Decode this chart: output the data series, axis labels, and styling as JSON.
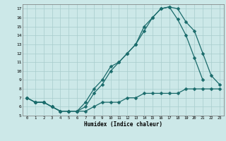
{
  "xlabel": "Humidex (Indice chaleur)",
  "bg_color": "#cce8e8",
  "line_color": "#1a6b6b",
  "grid_color": "#a8cccc",
  "xlim": [
    -0.5,
    23.5
  ],
  "ylim": [
    5,
    17.5
  ],
  "xticks": [
    0,
    1,
    2,
    3,
    4,
    5,
    6,
    7,
    8,
    9,
    10,
    11,
    12,
    13,
    14,
    15,
    16,
    17,
    18,
    19,
    20,
    21,
    22,
    23
  ],
  "yticks": [
    5,
    6,
    7,
    8,
    9,
    10,
    11,
    12,
    13,
    14,
    15,
    16,
    17
  ],
  "line1_x": [
    0,
    1,
    2,
    3,
    4,
    5,
    6,
    7,
    8,
    9,
    10,
    11,
    12,
    13,
    14,
    15,
    16,
    17,
    18,
    19,
    20,
    21,
    22,
    23
  ],
  "line1_y": [
    7.0,
    6.5,
    6.5,
    6.0,
    5.5,
    5.5,
    5.5,
    6.5,
    8.0,
    9.0,
    10.5,
    11.0,
    12.0,
    13.0,
    15.0,
    16.0,
    17.0,
    17.2,
    17.0,
    15.5,
    14.5,
    12.0,
    9.5,
    8.5
  ],
  "line2_x": [
    0,
    1,
    2,
    3,
    4,
    5,
    6,
    7,
    8,
    9,
    10,
    11,
    12,
    13,
    14,
    15,
    16,
    17,
    18,
    19,
    20,
    21
  ],
  "line2_y": [
    7.0,
    6.5,
    6.5,
    6.0,
    5.5,
    5.5,
    5.5,
    6.0,
    7.5,
    8.5,
    10.0,
    11.0,
    12.0,
    13.0,
    14.5,
    16.0,
    17.0,
    17.2,
    15.8,
    14.0,
    11.5,
    9.0
  ],
  "line3_x": [
    0,
    1,
    2,
    3,
    4,
    5,
    6,
    7,
    8,
    9,
    10,
    11,
    12,
    13,
    14,
    15,
    16,
    17,
    18,
    19,
    20,
    21,
    22,
    23
  ],
  "line3_y": [
    7.0,
    6.5,
    6.5,
    6.0,
    5.5,
    5.5,
    5.5,
    5.5,
    6.0,
    6.5,
    6.5,
    6.5,
    7.0,
    7.0,
    7.5,
    7.5,
    7.5,
    7.5,
    7.5,
    8.0,
    8.0,
    8.0,
    8.0,
    8.0
  ]
}
